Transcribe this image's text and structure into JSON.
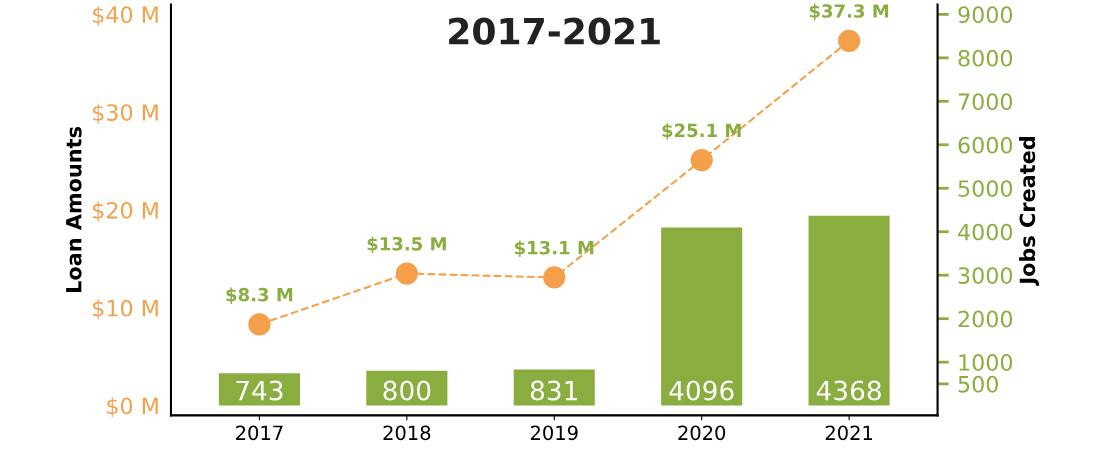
{
  "chart_data": {
    "type": "bar",
    "title": "2017-2021",
    "ylabel": "Loan Amounts",
    "y2label": "Jobs Created",
    "categories": [
      "2017",
      "2018",
      "2019",
      "2020",
      "2021"
    ],
    "series": [
      {
        "axis": "y2",
        "color": "#8aad3f",
        "values": [
          743,
          800,
          831,
          4096,
          4368
        ],
        "data_labels": true
      },
      {
        "type": "line",
        "axis": "y",
        "color": "#f4a04a",
        "values": [
          8.3,
          13.5,
          13.1,
          25.1,
          37.3
        ],
        "value_labels": [
          "$8.3 M",
          "$13.5 M",
          "$13.1 M",
          "$25.1 M",
          "$37.3 M"
        ],
        "marker": "circle",
        "line_style": "dashed"
      }
    ],
    "ylim": [
      -1,
      41
    ],
    "yticks": [
      {
        "value": 0,
        "label": "$0 M"
      },
      {
        "value": 10,
        "label": "$10 M"
      },
      {
        "value": 20,
        "label": "$20 M"
      },
      {
        "value": 30,
        "label": "$30 M"
      },
      {
        "value": 40,
        "label": "$40 M"
      }
    ],
    "y2lim": [
      -225,
      9225
    ],
    "y2ticks": [
      500,
      1000,
      2000,
      3000,
      4000,
      5000,
      6000,
      7000,
      8000,
      9000
    ],
    "grid": false,
    "legend": false
  }
}
